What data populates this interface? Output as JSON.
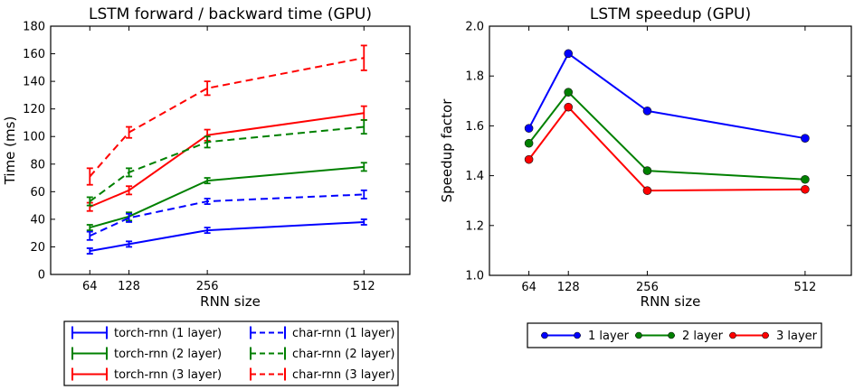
{
  "figure": {
    "background": "#ffffff",
    "axis_color": "#000000",
    "palette": {
      "blue": "#0000ff",
      "green": "#008000",
      "red": "#ff0000"
    }
  },
  "chart_data": [
    {
      "type": "line",
      "title": "LSTM forward / backward time (GPU)",
      "xlabel": "RNN size",
      "ylabel": "Time (ms)",
      "x": [
        64,
        128,
        256,
        512
      ],
      "xtick_labels": [
        "64",
        "128",
        "256",
        "512"
      ],
      "xlim": [
        0,
        587
      ],
      "ylim": [
        0,
        180
      ],
      "yticks": [
        0,
        20,
        40,
        60,
        80,
        100,
        120,
        140,
        160,
        180
      ],
      "ytick_labels": [
        "0",
        "20",
        "40",
        "60",
        "80",
        "100",
        "120",
        "140",
        "160",
        "180"
      ],
      "grid": false,
      "legend": {
        "position": "below",
        "columns": 2,
        "glyph": "errorbar"
      },
      "series": [
        {
          "name": "torch-rnn (1 layer)",
          "color": "#0000ff",
          "line": "solid",
          "values": [
            17,
            22,
            32,
            38
          ],
          "yerr": [
            2,
            2,
            2,
            2
          ]
        },
        {
          "name": "torch-rnn (2 layer)",
          "color": "#008000",
          "line": "solid",
          "values": [
            34,
            42,
            68,
            78
          ],
          "yerr": [
            2,
            3,
            2,
            3
          ]
        },
        {
          "name": "torch-rnn (3 layer)",
          "color": "#ff0000",
          "line": "solid",
          "values": [
            49,
            61,
            101,
            117
          ],
          "yerr": [
            3,
            3,
            4,
            5
          ]
        },
        {
          "name": "char-rnn (1 layer)",
          "color": "#0000ff",
          "line": "dashed",
          "values": [
            28,
            41,
            53,
            58
          ],
          "yerr": [
            3,
            3,
            2,
            3
          ]
        },
        {
          "name": "char-rnn (2 layer)",
          "color": "#008000",
          "line": "dashed",
          "values": [
            53,
            74,
            96,
            107
          ],
          "yerr": [
            3,
            3,
            4,
            5
          ]
        },
        {
          "name": "char-rnn (3 layer)",
          "color": "#ff0000",
          "line": "dashed",
          "values": [
            71,
            103,
            135,
            157
          ],
          "yerr": [
            6,
            4,
            5,
            9
          ]
        }
      ]
    },
    {
      "type": "line",
      "title": "LSTM speedup (GPU)",
      "xlabel": "RNN size",
      "ylabel": "Speedup factor",
      "x": [
        64,
        128,
        256,
        512
      ],
      "xtick_labels": [
        "64",
        "128",
        "256",
        "512"
      ],
      "xlim": [
        0,
        587
      ],
      "ylim": [
        1.0,
        2.0
      ],
      "yticks": [
        1.0,
        1.2,
        1.4,
        1.6,
        1.8,
        2.0
      ],
      "ytick_labels": [
        "1.0",
        "1.2",
        "1.4",
        "1.6",
        "1.8",
        "2.0"
      ],
      "grid": false,
      "legend": {
        "position": "below",
        "columns": 3,
        "glyph": "circle-line"
      },
      "series": [
        {
          "name": "1 layer",
          "color": "#0000ff",
          "line": "solid",
          "marker": "circle",
          "values": [
            1.59,
            1.89,
            1.66,
            1.55
          ]
        },
        {
          "name": "2 layer",
          "color": "#008000",
          "line": "solid",
          "marker": "circle",
          "values": [
            1.53,
            1.735,
            1.42,
            1.385
          ]
        },
        {
          "name": "3 layer",
          "color": "#ff0000",
          "line": "solid",
          "marker": "circle",
          "values": [
            1.465,
            1.675,
            1.34,
            1.345
          ]
        }
      ]
    }
  ]
}
